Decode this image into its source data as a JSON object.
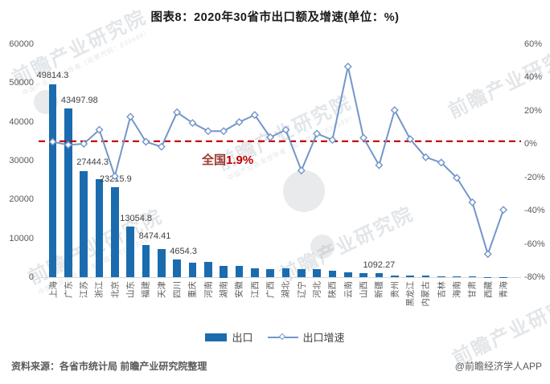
{
  "title": "图表8：2020年30省市出口额及增速(单位：%)",
  "legend": {
    "bar_label": "出口",
    "line_label": "出口增速"
  },
  "reference": {
    "prefix": "全国",
    "value_text": "1.9%"
  },
  "footer": {
    "source": "资料来源：各省市统计局 前瞻产业研究院整理",
    "credit": "@前瞻经济学人APP"
  },
  "watermark": {
    "text": "前瞻产业研究院",
    "subtext": "中国产业咨询领导者（股票代码：839599）"
  },
  "chart_data": {
    "type": "bar",
    "combo": "bar+line",
    "title": "图表8：2020年30省市出口额及增速(单位：%)",
    "categories": [
      "上海",
      "广东",
      "江苏",
      "浙江",
      "北京",
      "山东",
      "福建",
      "天津",
      "四川",
      "重庆",
      "河南",
      "湖南",
      "安徽",
      "江西",
      "广西",
      "湖北",
      "辽宁",
      "河北",
      "陕西",
      "云南",
      "山西",
      "新疆",
      "贵州",
      "黑龙江",
      "内蒙古",
      "吉林",
      "海南",
      "甘肃",
      "西藏",
      "青海"
    ],
    "series": [
      {
        "name": "出口",
        "type": "bar",
        "axis": "left",
        "unit": "亿元",
        "values": [
          49814.3,
          43497.98,
          27444.3,
          25300,
          23215.9,
          13054.8,
          8474.41,
          7300,
          4654.3,
          3900,
          3950,
          3000,
          2950,
          2430,
          2230,
          2420,
          2090,
          2230,
          1700,
          1400,
          1150,
          1092.27,
          500,
          480,
          450,
          360,
          310,
          240,
          100,
          80
        ]
      },
      {
        "name": "出口增速",
        "type": "line",
        "axis": "right",
        "unit": "%",
        "values": [
          1.6,
          -0.3,
          0.4,
          8.8,
          -19.1,
          16.6,
          1.6,
          -1.4,
          19.3,
          12.9,
          8,
          8,
          13.4,
          17.7,
          4.3,
          8.8,
          -15.7,
          6.5,
          2.7,
          46.8,
          4,
          -12.5,
          20.6,
          3.2,
          -7.7,
          -10.9,
          -20.1,
          -34.8,
          -65.9,
          -39.3
        ]
      }
    ],
    "data_labels": [
      {
        "i": 0,
        "text": "49814.3"
      },
      {
        "i": 1,
        "text": "43497.98"
      },
      {
        "i": 2,
        "text": "27444.3"
      },
      {
        "i": 4,
        "text": "23215.9"
      },
      {
        "i": 5,
        "text": "13054.8"
      },
      {
        "i": 6,
        "text": "8474.41"
      },
      {
        "i": 8,
        "text": "4654.3"
      },
      {
        "i": 21,
        "text": "1092.27"
      }
    ],
    "reference_line": {
      "axis": "right",
      "value": 1.9,
      "label": "全国1.9%"
    },
    "left_axis": {
      "min": 0,
      "max": 60000,
      "step": 10000,
      "ticks": [
        "0",
        "10000",
        "20000",
        "30000",
        "40000",
        "50000",
        "60000"
      ]
    },
    "right_axis": {
      "min": -80,
      "max": 60,
      "step": 20,
      "ticks": [
        "-80%",
        "-60%",
        "-40%",
        "-20%",
        "0%",
        "20%",
        "40%",
        "60%"
      ]
    },
    "grid": false,
    "legend_position": "bottom",
    "colors": {
      "bar": "#1b6cae",
      "line": "#7396c8",
      "reference": "#c00000"
    }
  }
}
